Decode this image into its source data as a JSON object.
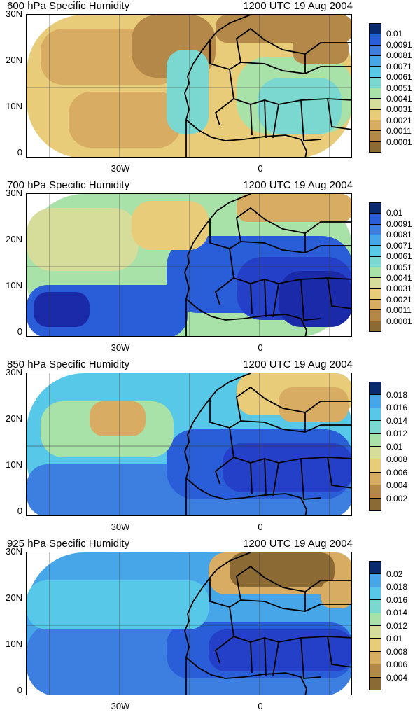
{
  "panels": [
    {
      "title": "600 hPa Specific Humidity",
      "time": "1200 UTC 19 Aug 2004",
      "levels": [
        "0.01",
        "0.0091",
        "0.0081",
        "0.0071",
        "0.0061",
        "0.0051",
        "0.0041",
        "0.0031",
        "0.0021",
        "0.0011",
        "0.0001"
      ],
      "pattern": "dry600"
    },
    {
      "title": "700 hPa Specific Humidity",
      "time": "1200 UTC 19 Aug 2004",
      "levels": [
        "0.01",
        "0.0091",
        "0.0081",
        "0.0071",
        "0.0061",
        "0.0051",
        "0.0041",
        "0.0031",
        "0.0021",
        "0.0011",
        "0.0001"
      ],
      "pattern": "moist700"
    },
    {
      "title": "850 hPa Specific Humidity",
      "time": "1200 UTC 19 Aug 2004",
      "levels": [
        "0.018",
        "0.016",
        "0.014",
        "0.012",
        "0.01",
        "0.008",
        "0.006",
        "0.004",
        "0.002"
      ],
      "pattern": "moist850"
    },
    {
      "title": "925 hPa Specific Humidity",
      "time": "1200 UTC 19 Aug 2004",
      "levels": [
        "0.02",
        "0.018",
        "0.016",
        "0.014",
        "0.012",
        "0.01",
        "0.008",
        "0.006",
        "0.004"
      ],
      "pattern": "moist925"
    }
  ],
  "axes": {
    "y_labels": [
      "30N",
      "20N",
      "10N",
      "0"
    ],
    "x_labels": [
      "30W",
      "0"
    ]
  },
  "colorscale": [
    "#0a2a6e",
    "#1a2aa8",
    "#2440c8",
    "#2a5ed8",
    "#3c7fe0",
    "#46a6e8",
    "#58c8e8",
    "#7ad8d0",
    "#a8e2a8",
    "#d6dc9a",
    "#e8cc7a",
    "#d8ac62",
    "#b48848",
    "#8c6a34"
  ]
}
